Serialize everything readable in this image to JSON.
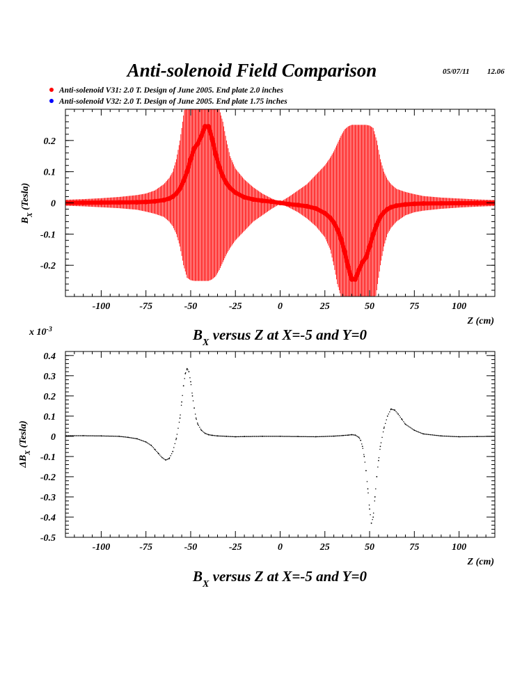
{
  "header": {
    "title": "Anti-solenoid Field Comparison",
    "date": "05/07/11",
    "time": "12.06"
  },
  "legend": {
    "items": [
      {
        "label": "Anti-solenoid V31: 2.0 T. Design of June 2005. End plate 2.0 inches",
        "color": "#ff0000"
      },
      {
        "label": "Anti-solenoid V32: 2.0 T. Design of June 2005. End plate 1.75 inches",
        "color": "#0000ff"
      }
    ]
  },
  "chart_data": [
    {
      "type": "line",
      "title": "",
      "caption_main": "B",
      "caption_sub": "X",
      "caption_rest": " versus Z at X=-5 and Y=0",
      "xlabel": "Z (cm)",
      "ylabel_main": "B",
      "ylabel_sub": "X",
      "ylabel_rest": " (Tesla)",
      "xlim": [
        -120,
        120
      ],
      "ylim": [
        -0.3,
        0.3
      ],
      "xticks": [
        -100,
        -75,
        -50,
        -25,
        0,
        25,
        50,
        75,
        100
      ],
      "yticks": [
        -0.2,
        -0.1,
        0,
        0.1,
        0.2
      ],
      "ytick_labels": [
        "-0.2",
        "-0.1",
        "0",
        "0.1",
        "0.2"
      ],
      "grid": false,
      "series": [
        {
          "name": "Anti-solenoid V31: 2.0 T. Design of June 2005. End plate 2.0 inches",
          "color": "#ff0000",
          "style": "thick-line",
          "x": [
            -120,
            -110,
            -100,
            -90,
            -80,
            -75,
            -70,
            -65,
            -62,
            -60,
            -58,
            -56,
            -54,
            -52,
            -50,
            -48,
            -46,
            -44,
            -42,
            -40,
            -38,
            -36,
            -34,
            -32,
            -30,
            -28,
            -25,
            -20,
            -15,
            -10,
            -5,
            0,
            5,
            10,
            15,
            20,
            25,
            28,
            30,
            32,
            34,
            36,
            38,
            40,
            42,
            44,
            46,
            48,
            50,
            52,
            54,
            56,
            58,
            60,
            62,
            65,
            70,
            75,
            80,
            90,
            100,
            110,
            120
          ],
          "y": [
            0.0,
            0.0005,
            0.001,
            0.0015,
            0.002,
            0.003,
            0.005,
            0.009,
            0.014,
            0.02,
            0.03,
            0.045,
            0.07,
            0.1,
            0.14,
            0.175,
            0.19,
            0.215,
            0.245,
            0.245,
            0.205,
            0.155,
            0.115,
            0.085,
            0.063,
            0.048,
            0.033,
            0.018,
            0.011,
            0.007,
            0.004,
            0.0,
            -0.004,
            -0.007,
            -0.011,
            -0.018,
            -0.033,
            -0.048,
            -0.063,
            -0.085,
            -0.115,
            -0.155,
            -0.205,
            -0.245,
            -0.245,
            -0.215,
            -0.19,
            -0.175,
            -0.14,
            -0.1,
            -0.07,
            -0.045,
            -0.03,
            -0.02,
            -0.014,
            -0.009,
            -0.005,
            -0.003,
            -0.002,
            -0.0015,
            -0.001,
            -0.0005,
            0.0
          ]
        },
        {
          "name": "oscillation envelope",
          "color": "#ff0000",
          "style": "fill-band",
          "x": [
            -120,
            -110,
            -100,
            -90,
            -80,
            -75,
            -70,
            -65,
            -62,
            -60,
            -58,
            -56,
            -54,
            -52,
            -50,
            -48,
            -46,
            -44,
            -42,
            -40,
            -38,
            -36,
            -34,
            -32,
            -30,
            -28,
            -25,
            -20,
            -15,
            -10,
            -5,
            0,
            5,
            10,
            15,
            20,
            25,
            28,
            30,
            32,
            34,
            36,
            38,
            40,
            42,
            44,
            46,
            48,
            50,
            52,
            54,
            56,
            58,
            60,
            62,
            65,
            70,
            75,
            80,
            90,
            100,
            110,
            120
          ],
          "upper": [
            0.01,
            0.012,
            0.015,
            0.019,
            0.025,
            0.03,
            0.04,
            0.06,
            0.08,
            0.1,
            0.14,
            0.2,
            0.28,
            0.35,
            0.38,
            0.4,
            0.42,
            0.45,
            0.45,
            0.42,
            0.4,
            0.38,
            0.3,
            0.26,
            0.2,
            0.15,
            0.11,
            0.075,
            0.05,
            0.03,
            0.015,
            0.003,
            0.02,
            0.04,
            0.06,
            0.09,
            0.12,
            0.145,
            0.165,
            0.19,
            0.215,
            0.235,
            0.245,
            0.25,
            0.25,
            0.25,
            0.25,
            0.25,
            0.248,
            0.24,
            0.2,
            0.14,
            0.1,
            0.075,
            0.06,
            0.045,
            0.035,
            0.028,
            0.022,
            0.017,
            0.014,
            0.011,
            0.009
          ],
          "lower": [
            -0.009,
            -0.011,
            -0.014,
            -0.017,
            -0.022,
            -0.028,
            -0.035,
            -0.045,
            -0.06,
            -0.075,
            -0.1,
            -0.14,
            -0.2,
            -0.24,
            -0.248,
            -0.25,
            -0.25,
            -0.25,
            -0.25,
            -0.25,
            -0.245,
            -0.235,
            -0.215,
            -0.19,
            -0.165,
            -0.145,
            -0.12,
            -0.09,
            -0.06,
            -0.04,
            -0.02,
            -0.003,
            -0.015,
            -0.03,
            -0.05,
            -0.075,
            -0.11,
            -0.15,
            -0.2,
            -0.26,
            -0.3,
            -0.38,
            -0.4,
            -0.42,
            -0.45,
            -0.45,
            -0.42,
            -0.4,
            -0.38,
            -0.35,
            -0.28,
            -0.2,
            -0.14,
            -0.1,
            -0.08,
            -0.06,
            -0.04,
            -0.03,
            -0.025,
            -0.019,
            -0.015,
            -0.012,
            -0.01
          ]
        }
      ]
    },
    {
      "type": "scatter",
      "title": "",
      "caption_main": "B",
      "caption_sub": "X",
      "caption_rest": " versus Z at X=-5 and Y=0",
      "xlabel": "Z (cm)",
      "ylabel_main": "ΔB",
      "ylabel_sub": "X",
      "ylabel_rest": " (Tesla)",
      "y_multiplier_label": "x 10",
      "y_multiplier_exp": "-3",
      "xlim": [
        -120,
        120
      ],
      "ylim": [
        -0.5,
        0.42
      ],
      "xticks": [
        -100,
        -75,
        -50,
        -25,
        0,
        25,
        50,
        75,
        100
      ],
      "yticks": [
        -0.5,
        -0.4,
        -0.3,
        -0.2,
        -0.1,
        0,
        0.1,
        0.2,
        0.3,
        0.4
      ],
      "ytick_labels": [
        "-0.5",
        "-0.4",
        "-0.3",
        "-0.2",
        "-0.1",
        "0",
        "0.1",
        "0.2",
        "0.3",
        "0.4"
      ],
      "grid": false,
      "series": [
        {
          "name": "ΔBx",
          "color": "#000000",
          "style": "dots",
          "x": [
            -120,
            -110,
            -100,
            -90,
            -85,
            -80,
            -75,
            -72,
            -70,
            -68,
            -66,
            -64,
            -62,
            -60,
            -58,
            -56,
            -55,
            -54,
            -53,
            -52,
            -51,
            -50,
            -49,
            -48,
            -47,
            -46,
            -44,
            -42,
            -40,
            -38,
            -35,
            -30,
            -25,
            -20,
            -10,
            0,
            10,
            20,
            30,
            35,
            38,
            40,
            42,
            44,
            45,
            46,
            47,
            48,
            49,
            50,
            51,
            52,
            53,
            54,
            55,
            56,
            58,
            60,
            62,
            64,
            66,
            68,
            70,
            75,
            80,
            90,
            100,
            110,
            120
          ],
          "y": [
            0.003,
            0.003,
            0.002,
            0.0,
            -0.005,
            -0.012,
            -0.028,
            -0.045,
            -0.065,
            -0.085,
            -0.105,
            -0.117,
            -0.11,
            -0.075,
            -0.01,
            0.09,
            0.17,
            0.25,
            0.31,
            0.335,
            0.32,
            0.27,
            0.2,
            0.14,
            0.09,
            0.06,
            0.03,
            0.015,
            0.008,
            0.005,
            0.002,
            0.0,
            -0.002,
            -0.001,
            0.0,
            0.0,
            -0.001,
            -0.002,
            0.001,
            0.004,
            0.006,
            0.008,
            0.006,
            -0.005,
            -0.02,
            -0.05,
            -0.1,
            -0.17,
            -0.26,
            -0.36,
            -0.43,
            -0.4,
            -0.3,
            -0.2,
            -0.12,
            -0.05,
            0.04,
            0.1,
            0.135,
            0.13,
            0.11,
            0.085,
            0.06,
            0.03,
            0.012,
            0.002,
            -0.002,
            -0.001,
            0.0
          ]
        }
      ]
    }
  ]
}
